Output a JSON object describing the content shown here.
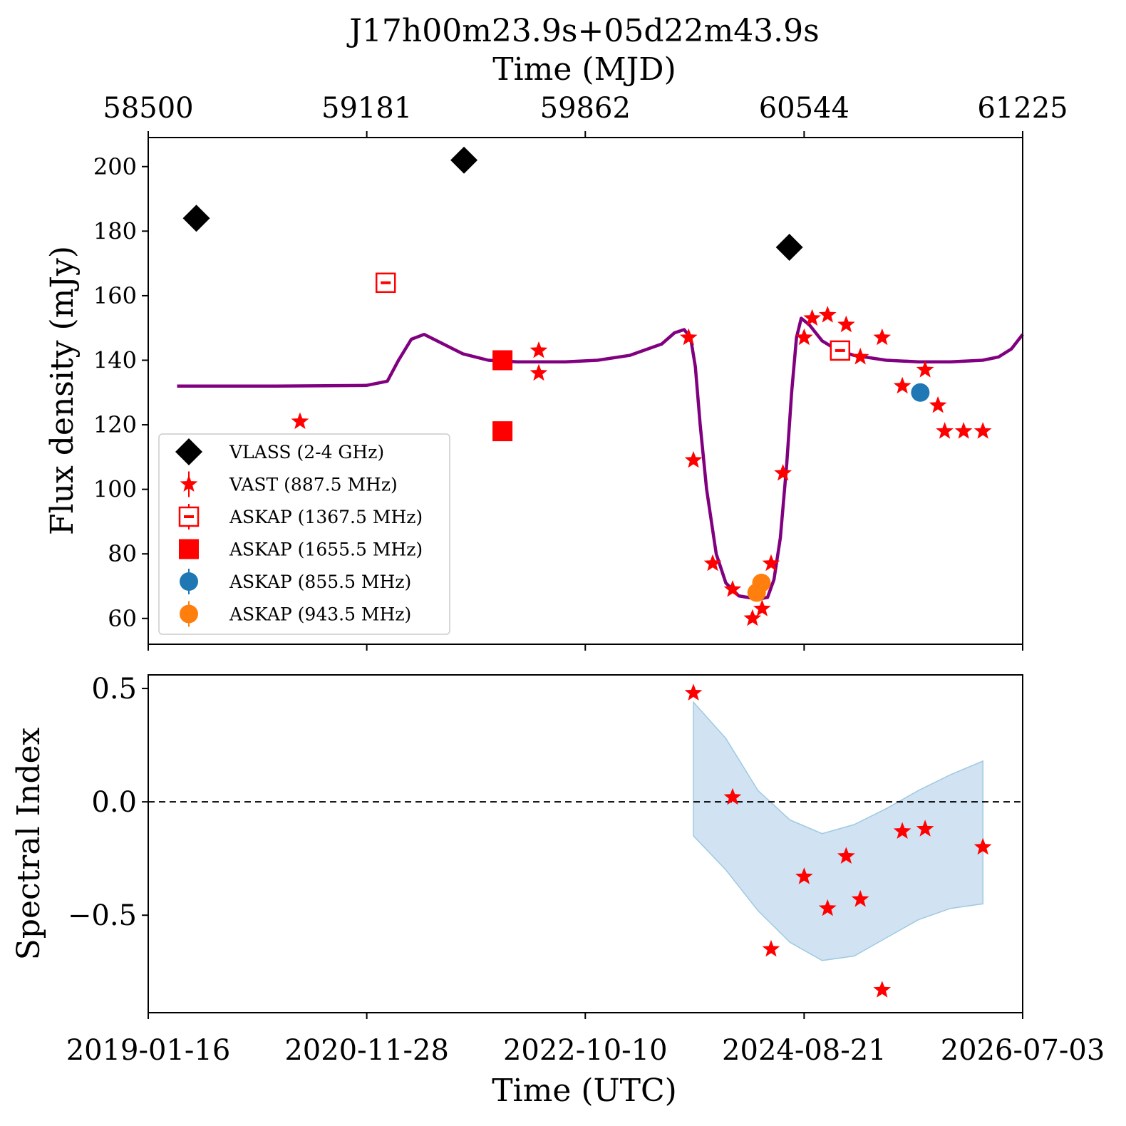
{
  "chart_data": [
    {
      "type": "scatter",
      "title": "J17h00m23.9s+05d22m43.9s",
      "top_axis": {
        "label": "Time (MJD)",
        "ticks": [
          "58500",
          "59181",
          "59862",
          "60544",
          "61225"
        ],
        "tick_values": [
          58500,
          59181,
          59862,
          60544,
          61225
        ]
      },
      "xlim": [
        58500,
        61225
      ],
      "ylabel": "Flux density (mJy)",
      "ylim": [
        52,
        209
      ],
      "yticks": [
        60,
        80,
        100,
        120,
        140,
        160,
        180,
        200
      ],
      "grid": false,
      "legend_position": "lower-left",
      "series": [
        {
          "name": "VLASS (2-4 GHz)",
          "marker": "diamond",
          "color": "#000000",
          "x": [
            58650,
            59484,
            60498
          ],
          "y": [
            184,
            202,
            175
          ]
        },
        {
          "name": "VAST (887.5 MHz)",
          "marker": "star",
          "color": "#ff0000",
          "x": [
            58973,
            59717,
            59717,
            60184,
            60199,
            60259,
            60321,
            60383,
            60413,
            60441,
            60478,
            60544,
            60569,
            60617,
            60675,
            60719,
            60787,
            60850,
            60921,
            60961,
            60982,
            61041,
            61101
          ],
          "y": [
            121,
            143,
            136,
            147,
            109,
            77,
            69,
            60,
            63,
            77,
            105,
            147,
            153,
            154,
            151,
            141,
            147,
            132,
            137,
            126,
            118,
            118,
            118
          ],
          "x_shown": [
            58973,
            59717,
            59717,
            60184,
            60199,
            60259,
            60321,
            60383,
            60413,
            60441,
            60478,
            60544,
            60569,
            60617,
            60675,
            60719,
            60787,
            60850,
            60921,
            60961,
            60982,
            61041,
            61101
          ]
        },
        {
          "name": "ASKAP (1367.5 MHz)",
          "marker": "square-open",
          "color": "#ff0000",
          "x": [
            59240,
            60656
          ],
          "y": [
            164,
            143
          ]
        },
        {
          "name": "ASKAP (1655.5 MHz)",
          "marker": "square",
          "color": "#ff0000",
          "x": [
            59604,
            59604
          ],
          "y": [
            140,
            118
          ]
        },
        {
          "name": "ASKAP (855.5 MHz)",
          "marker": "circle",
          "color": "#1f77b4",
          "x": [
            60906
          ],
          "y": [
            130
          ]
        },
        {
          "name": "ASKAP (943.5 MHz)",
          "marker": "circle",
          "color": "#ff7f0e",
          "x": [
            60396,
            60411
          ],
          "y": [
            68,
            71
          ]
        },
        {
          "name": "",
          "marker": "line",
          "color": "#800080",
          "x": [
            58590,
            58900,
            59180,
            59245,
            59280,
            59320,
            59360,
            59400,
            59480,
            59560,
            59650,
            59800,
            59900,
            60000,
            60100,
            60140,
            60170,
            60190,
            60205,
            60220,
            60240,
            60270,
            60300,
            60340,
            60400,
            60430,
            60450,
            60470,
            60490,
            60505,
            60520,
            60535,
            60560,
            60600,
            60650,
            60700,
            60800,
            60900,
            61000,
            61100,
            61150,
            61190,
            61225
          ],
          "y": [
            132,
            132,
            132.2,
            133.5,
            140,
            146.5,
            148,
            146,
            142,
            140,
            139.5,
            139.5,
            140,
            141.5,
            145,
            148.5,
            149.5,
            147,
            138,
            120,
            100,
            80,
            71,
            67,
            66,
            66.5,
            72,
            85,
            108,
            130,
            147,
            153,
            151,
            146,
            143,
            141.5,
            140,
            139.5,
            139.5,
            140,
            141,
            143.5,
            148
          ]
        }
      ]
    },
    {
      "type": "scatter",
      "xlabel": "Time (UTC)",
      "ylabel": "Spectral Index",
      "xlim": [
        58500,
        61225
      ],
      "x_tick_labels": [
        "2019-01-16",
        "2020-11-28",
        "2022-10-10",
        "2024-08-21",
        "2026-07-03"
      ],
      "ylim": [
        -0.93,
        0.56
      ],
      "yticks": [
        0.5,
        0.0,
        -0.5
      ],
      "ytick_labels": [
        "0.5",
        "0.0",
        "−0.5"
      ],
      "reference_line": {
        "y": 0.0,
        "style": "dashed",
        "color": "#000000"
      },
      "band": {
        "color": "#c6dbef",
        "x": [
          60199,
          60300,
          60400,
          60500,
          60600,
          60700,
          60800,
          60900,
          61000,
          61101
        ],
        "upper": [
          0.44,
          0.28,
          0.05,
          -0.08,
          -0.14,
          -0.1,
          -0.03,
          0.05,
          0.12,
          0.18
        ],
        "lower": [
          -0.15,
          -0.3,
          -0.48,
          -0.62,
          -0.7,
          -0.68,
          -0.6,
          -0.52,
          -0.47,
          -0.45
        ]
      },
      "series": [
        {
          "name": "",
          "marker": "star",
          "color": "#ff0000",
          "x": [
            60199,
            60321,
            60441,
            60544,
            60617,
            60675,
            60719,
            60787,
            60850,
            60921,
            61101
          ],
          "y": [
            0.48,
            0.02,
            -0.65,
            -0.33,
            -0.47,
            -0.24,
            -0.43,
            -0.83,
            -0.13,
            -0.12,
            -0.2
          ]
        }
      ]
    }
  ]
}
